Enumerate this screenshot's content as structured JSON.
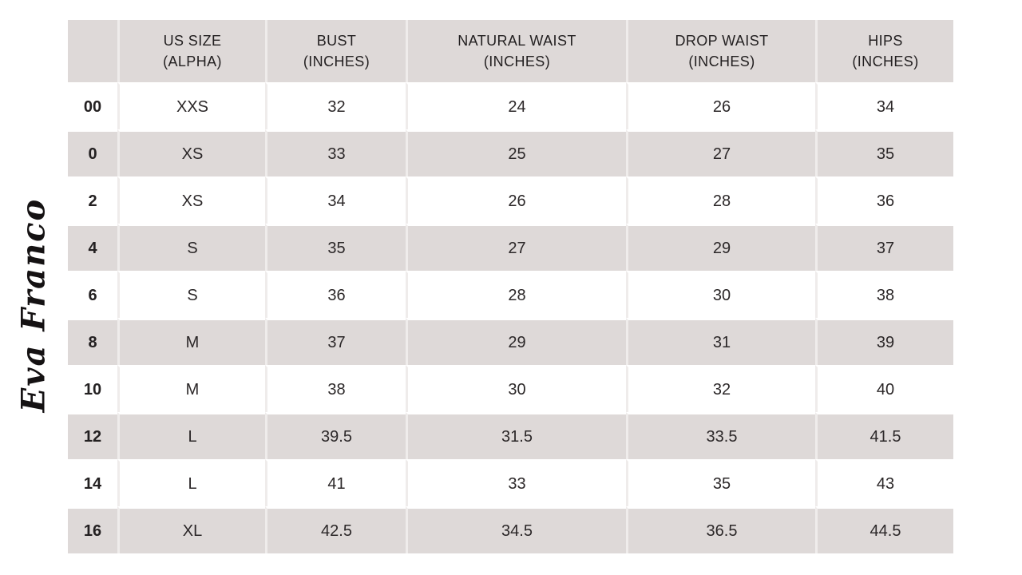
{
  "brand": {
    "logo_text": "Eva Franco"
  },
  "colors": {
    "background": "#ffffff",
    "row_shade": "#ded9d8",
    "separator": "#efeceb",
    "text": "#2b2728",
    "header_text": "#232021"
  },
  "table": {
    "columns": [
      {
        "line1": "US SIZE",
        "line2": "(ALPHA)"
      },
      {
        "line1": "BUST",
        "line2": "(INCHES)"
      },
      {
        "line1": "NATURAL WAIST",
        "line2": "(INCHES)"
      },
      {
        "line1": "DROP WAIST",
        "line2": "(INCHES)"
      },
      {
        "line1": "HIPS",
        "line2": "(INCHES)"
      }
    ],
    "field_order": [
      "us_size",
      "alpha",
      "bust",
      "natural_waist",
      "drop_waist",
      "hips"
    ],
    "rows": [
      {
        "us_size": "00",
        "alpha": "XXS",
        "bust": "32",
        "natural_waist": "24",
        "drop_waist": "26",
        "hips": "34"
      },
      {
        "us_size": "0",
        "alpha": "XS",
        "bust": "33",
        "natural_waist": "25",
        "drop_waist": "27",
        "hips": "35"
      },
      {
        "us_size": "2",
        "alpha": "XS",
        "bust": "34",
        "natural_waist": "26",
        "drop_waist": "28",
        "hips": "36"
      },
      {
        "us_size": "4",
        "alpha": "S",
        "bust": "35",
        "natural_waist": "27",
        "drop_waist": "29",
        "hips": "37"
      },
      {
        "us_size": "6",
        "alpha": "S",
        "bust": "36",
        "natural_waist": "28",
        "drop_waist": "30",
        "hips": "38"
      },
      {
        "us_size": "8",
        "alpha": "M",
        "bust": "37",
        "natural_waist": "29",
        "drop_waist": "31",
        "hips": "39"
      },
      {
        "us_size": "10",
        "alpha": "M",
        "bust": "38",
        "natural_waist": "30",
        "drop_waist": "32",
        "hips": "40"
      },
      {
        "us_size": "12",
        "alpha": "L",
        "bust": "39.5",
        "natural_waist": "31.5",
        "drop_waist": "33.5",
        "hips": "41.5"
      },
      {
        "us_size": "14",
        "alpha": "L",
        "bust": "41",
        "natural_waist": "33",
        "drop_waist": "35",
        "hips": "43"
      },
      {
        "us_size": "16",
        "alpha": "XL",
        "bust": "42.5",
        "natural_waist": "34.5",
        "drop_waist": "36.5",
        "hips": "44.5"
      }
    ]
  },
  "chart_data": {
    "type": "table",
    "columns": [
      "US SIZE",
      "US SIZE (ALPHA)",
      "BUST (INCHES)",
      "NATURAL WAIST (INCHES)",
      "DROP WAIST (INCHES)",
      "HIPS (INCHES)"
    ],
    "rows": [
      [
        "00",
        "XXS",
        32,
        24,
        26,
        34
      ],
      [
        "0",
        "XS",
        33,
        25,
        27,
        35
      ],
      [
        "2",
        "XS",
        34,
        26,
        28,
        36
      ],
      [
        "4",
        "S",
        35,
        27,
        29,
        37
      ],
      [
        "6",
        "S",
        36,
        28,
        30,
        38
      ],
      [
        "8",
        "M",
        37,
        29,
        31,
        39
      ],
      [
        "10",
        "M",
        38,
        30,
        32,
        40
      ],
      [
        "12",
        "L",
        39.5,
        31.5,
        33.5,
        41.5
      ],
      [
        "14",
        "L",
        41,
        33,
        35,
        43
      ],
      [
        "16",
        "XL",
        42.5,
        34.5,
        36.5,
        44.5
      ]
    ],
    "layout": {
      "header_row_shaded": true,
      "alternating_rows": "white/gray starting white",
      "grid": "white row gaps, light column separators"
    }
  }
}
